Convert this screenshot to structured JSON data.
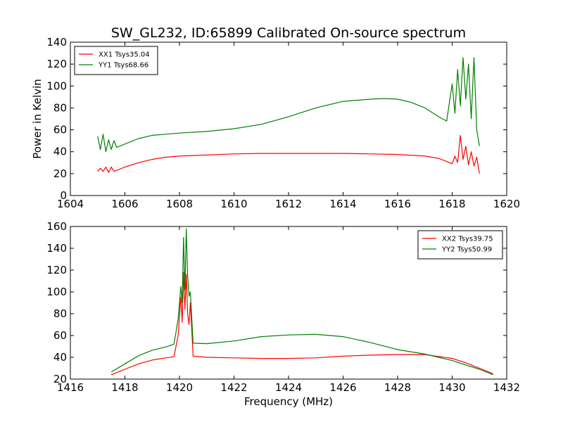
{
  "title": "SW_GL232, ID:65899 Calibrated On-source spectrum",
  "chart_data": [
    {
      "type": "line",
      "title": "SW_GL232, ID:65899 Calibrated On-source spectrum",
      "xlabel": "",
      "ylabel": "Power in Kelvin",
      "xlim": [
        1604,
        1620
      ],
      "ylim": [
        0,
        140
      ],
      "xticks": [
        1604,
        1606,
        1608,
        1610,
        1612,
        1614,
        1616,
        1618,
        1620
      ],
      "yticks": [
        0,
        20,
        40,
        60,
        80,
        100,
        120,
        140
      ],
      "legend_position": "top-left",
      "grid": false,
      "series": [
        {
          "name": "XX1 Tsys35.04",
          "color": "#ff0000",
          "x": [
            1605.0,
            1605.1,
            1605.2,
            1605.3,
            1605.4,
            1605.5,
            1605.6,
            1605.7,
            1606.0,
            1606.5,
            1607.0,
            1607.5,
            1608.0,
            1609.0,
            1610.0,
            1611.0,
            1612.0,
            1613.0,
            1614.0,
            1615.0,
            1616.0,
            1617.0,
            1617.5,
            1617.8,
            1618.0,
            1618.1,
            1618.2,
            1618.3,
            1618.4,
            1618.5,
            1618.6,
            1618.7,
            1618.8,
            1618.9,
            1619.0
          ],
          "y": [
            22,
            25,
            22,
            26,
            21,
            26,
            22,
            23,
            26,
            30,
            33,
            35,
            36,
            37,
            38,
            38.5,
            38.5,
            38.5,
            38.5,
            38,
            37.5,
            36,
            34,
            31,
            29,
            36,
            30,
            55,
            33,
            45,
            28,
            40,
            27,
            35,
            20
          ]
        },
        {
          "name": "YY1 Tsys68.66",
          "color": "#008000",
          "x": [
            1605.0,
            1605.1,
            1605.2,
            1605.3,
            1605.4,
            1605.5,
            1605.6,
            1605.7,
            1606.0,
            1606.5,
            1607.0,
            1607.5,
            1608.0,
            1609.0,
            1610.0,
            1611.0,
            1612.0,
            1613.0,
            1614.0,
            1615.0,
            1615.5,
            1616.0,
            1616.5,
            1617.0,
            1617.5,
            1617.8,
            1618.0,
            1618.1,
            1618.2,
            1618.3,
            1618.4,
            1618.5,
            1618.6,
            1618.7,
            1618.8,
            1618.9,
            1619.0
          ],
          "y": [
            54,
            42,
            56,
            40,
            51,
            42,
            50,
            44,
            47,
            52,
            55,
            56,
            57,
            58.5,
            61,
            65,
            72,
            80,
            86,
            88,
            88.5,
            88,
            85,
            80,
            72,
            68,
            102,
            75,
            115,
            82,
            126,
            88,
            120,
            70,
            126,
            60,
            45
          ]
        }
      ]
    },
    {
      "type": "line",
      "title": "",
      "xlabel": "Frequency (MHz)",
      "ylabel": "",
      "xlim": [
        1416,
        1432
      ],
      "ylim": [
        20,
        160
      ],
      "xticks": [
        1416,
        1418,
        1420,
        1422,
        1424,
        1426,
        1428,
        1430,
        1432
      ],
      "yticks": [
        20,
        40,
        60,
        80,
        100,
        120,
        140,
        160
      ],
      "legend_position": "top-right",
      "grid": false,
      "series": [
        {
          "name": "XX2 Tsys39.75",
          "color": "#ff0000",
          "x": [
            1417.5,
            1418.0,
            1418.5,
            1419.0,
            1419.5,
            1419.8,
            1419.95,
            1420.05,
            1420.1,
            1420.15,
            1420.2,
            1420.25,
            1420.3,
            1420.35,
            1420.4,
            1420.5,
            1421.0,
            1422.0,
            1423.0,
            1424.0,
            1425.0,
            1426.0,
            1427.0,
            1428.0,
            1429.0,
            1430.0,
            1430.5,
            1431.0,
            1431.5
          ],
          "y": [
            24,
            29,
            34,
            37.5,
            39.5,
            40.5,
            60,
            95,
            72,
            118,
            84,
            116,
            80,
            70,
            90,
            41,
            40,
            39.5,
            39,
            39,
            39.5,
            41,
            42,
            42.5,
            42.5,
            39,
            35,
            30,
            25
          ]
        },
        {
          "name": "YY2 Tsys50.99",
          "color": "#008000",
          "x": [
            1417.5,
            1418.0,
            1418.5,
            1419.0,
            1419.5,
            1419.8,
            1419.95,
            1420.05,
            1420.1,
            1420.15,
            1420.2,
            1420.25,
            1420.3,
            1420.35,
            1420.4,
            1420.5,
            1421.0,
            1422.0,
            1423.0,
            1424.0,
            1425.0,
            1426.0,
            1427.0,
            1428.0,
            1429.0,
            1429.5,
            1430.0,
            1430.5,
            1431.0,
            1431.5
          ],
          "y": [
            26.5,
            34,
            41.5,
            46.5,
            49.5,
            52,
            75,
            105,
            90,
            150,
            102,
            158,
            115,
            96,
            100,
            53,
            52.5,
            55,
            59,
            60.5,
            61,
            59,
            53.5,
            47,
            43,
            40,
            37,
            33,
            29,
            24
          ]
        }
      ]
    }
  ]
}
